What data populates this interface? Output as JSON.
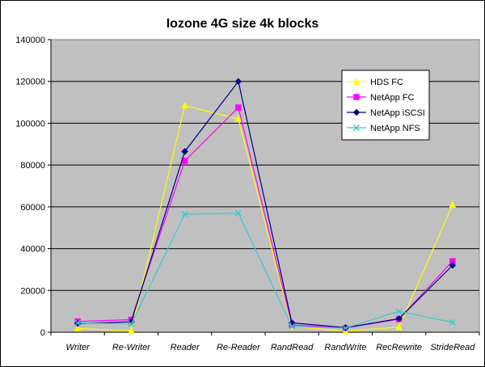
{
  "chart_data": {
    "type": "line",
    "title": "Iozone 4G size 4k blocks",
    "xlabel": "",
    "ylabel": "",
    "ylim": [
      0,
      140000
    ],
    "yticks": [
      0,
      20000,
      40000,
      60000,
      80000,
      100000,
      120000,
      140000
    ],
    "ytick_labels": [
      "0",
      "20000",
      "40000",
      "60000",
      "80000",
      "100000",
      "120000",
      "140000"
    ],
    "grid": true,
    "legend_position": "right",
    "categories": [
      "Writer",
      "Re-Writer",
      "Reader",
      "Re-Reader",
      "RandRead",
      "RandWrite",
      "RecRewrite",
      "StrideRead"
    ],
    "series": [
      {
        "name": "HDS FC",
        "color": "#FFFF00",
        "marker": "triangle",
        "values": [
          1800,
          700,
          108500,
          102000,
          2700,
          500,
          2500,
          61000
        ]
      },
      {
        "name": "NetApp FC",
        "color": "#FF00FF",
        "marker": "square",
        "values": [
          5200,
          6000,
          82000,
          107500,
          3500,
          2000,
          6300,
          34000
        ]
      },
      {
        "name": "NetApp iSCSI",
        "color": "#000080",
        "marker": "diamond",
        "values": [
          4200,
          5000,
          86500,
          120000,
          4500,
          2200,
          6500,
          32000
        ]
      },
      {
        "name": "NetApp NFS",
        "color": "#33CCCC",
        "marker": "x",
        "values": [
          4500,
          4000,
          56500,
          57000,
          2700,
          2000,
          10000,
          4700
        ]
      }
    ]
  }
}
